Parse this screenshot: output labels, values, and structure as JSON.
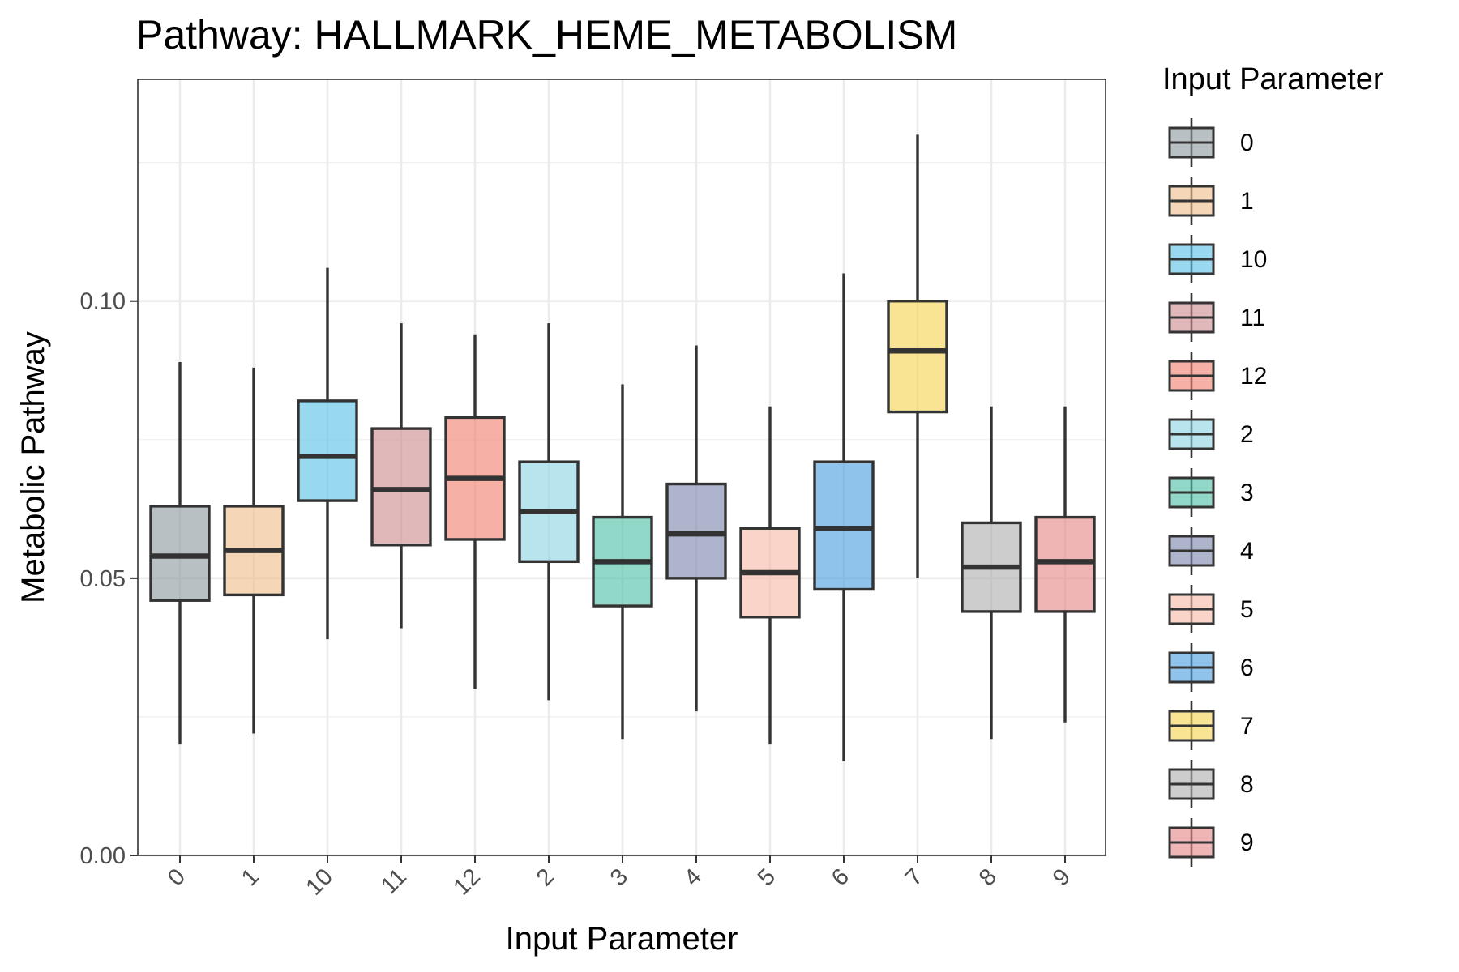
{
  "chart_data": {
    "type": "boxplot",
    "title": "Pathway: HALLMARK_HEME_METABOLISM",
    "xlabel": "Input Parameter",
    "ylabel": "Metabolic Pathway",
    "ylim": [
      0,
      0.14
    ],
    "yticks": [
      0.0,
      0.05,
      0.1
    ],
    "ytick_labels": [
      "0.00",
      "0.05",
      "0.10"
    ],
    "grid": true,
    "legend": {
      "title": "Input Parameter",
      "position": "right"
    },
    "categories": [
      "0",
      "1",
      "10",
      "11",
      "12",
      "2",
      "3",
      "4",
      "5",
      "6",
      "7",
      "8",
      "9"
    ],
    "boxes": [
      {
        "name": "0",
        "min": 0.02,
        "q1": 0.046,
        "median": 0.054,
        "q3": 0.063,
        "max": 0.089,
        "color": "#8c9aa0"
      },
      {
        "name": "1",
        "min": 0.022,
        "q1": 0.047,
        "median": 0.055,
        "q3": 0.063,
        "max": 0.088,
        "color": "#efbd8a"
      },
      {
        "name": "10",
        "min": 0.039,
        "q1": 0.064,
        "median": 0.072,
        "q3": 0.082,
        "max": 0.106,
        "color": "#5bc1e7"
      },
      {
        "name": "11",
        "min": 0.041,
        "q1": 0.056,
        "median": 0.066,
        "q3": 0.077,
        "max": 0.096,
        "color": "#cf8c8e"
      },
      {
        "name": "12",
        "min": 0.03,
        "q1": 0.057,
        "median": 0.068,
        "q3": 0.079,
        "max": 0.094,
        "color": "#f17f70"
      },
      {
        "name": "2",
        "min": 0.028,
        "q1": 0.053,
        "median": 0.062,
        "q3": 0.071,
        "max": 0.096,
        "color": "#8dd4e3"
      },
      {
        "name": "3",
        "min": 0.021,
        "q1": 0.045,
        "median": 0.053,
        "q3": 0.061,
        "max": 0.085,
        "color": "#4ec0a6"
      },
      {
        "name": "4",
        "min": 0.026,
        "q1": 0.05,
        "median": 0.058,
        "q3": 0.067,
        "max": 0.092,
        "color": "#7a86ad"
      },
      {
        "name": "5",
        "min": 0.02,
        "q1": 0.043,
        "median": 0.051,
        "q3": 0.059,
        "max": 0.081,
        "color": "#f7b9a8"
      },
      {
        "name": "6",
        "min": 0.017,
        "q1": 0.048,
        "median": 0.059,
        "q3": 0.071,
        "max": 0.105,
        "color": "#4a9ee0"
      },
      {
        "name": "7",
        "min": 0.05,
        "q1": 0.08,
        "median": 0.091,
        "q3": 0.1,
        "max": 0.13,
        "color": "#f5d350"
      },
      {
        "name": "8",
        "min": 0.021,
        "q1": 0.044,
        "median": 0.052,
        "q3": 0.06,
        "max": 0.081,
        "color": "#afafaf"
      },
      {
        "name": "9",
        "min": 0.024,
        "q1": 0.044,
        "median": 0.053,
        "q3": 0.061,
        "max": 0.081,
        "color": "#e58886"
      }
    ]
  }
}
